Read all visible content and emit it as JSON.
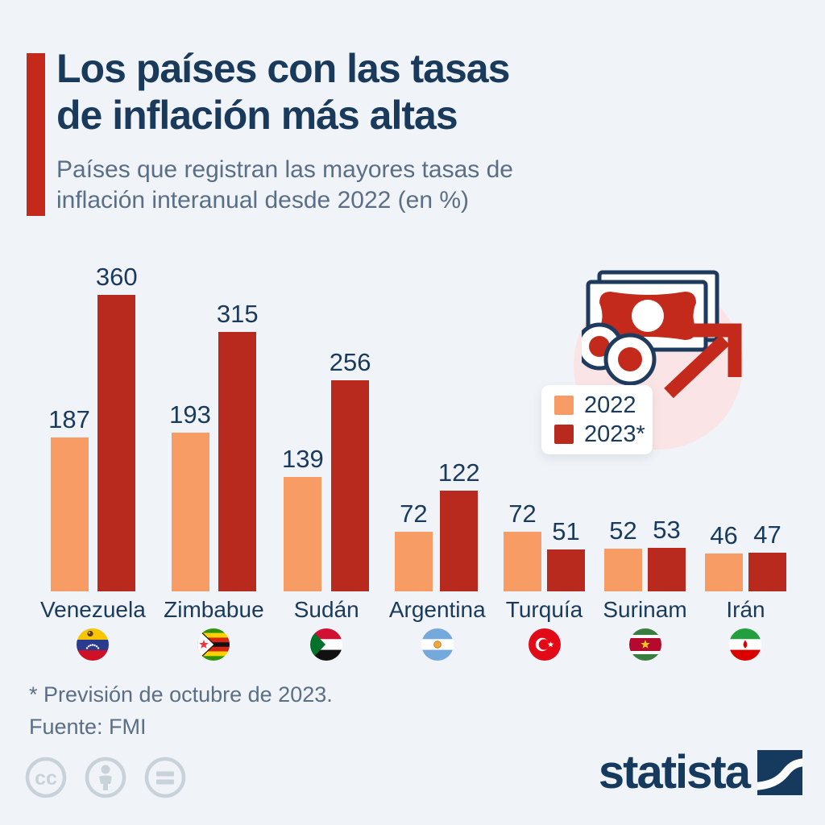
{
  "header": {
    "title_line1": "Los países con las tasas",
    "title_line2": "de inflación más altas",
    "subtitle_line1": "Países que registran las mayores tasas de",
    "subtitle_line2": "inflación interanual desde 2022 (en %)"
  },
  "chart_data": {
    "type": "bar",
    "title": "Los países con las tasas de inflación más altas",
    "subtitle": "Países que registran las mayores tasas de inflación interanual desde 2022 (en %)",
    "categories": [
      "Venezuela",
      "Zimbabue",
      "Sudán",
      "Argentina",
      "Turquía",
      "Surinam",
      "Irán"
    ],
    "series": [
      {
        "name": "2022",
        "color": "#F89C66",
        "values": [
          187,
          193,
          139,
          72,
          72,
          52,
          46
        ]
      },
      {
        "name": "2023*",
        "color": "#B92A1E",
        "values": [
          360,
          315,
          256,
          122,
          51,
          53,
          47
        ]
      }
    ],
    "flags": [
      "venezuela",
      "zimbabwe",
      "sudan",
      "argentina",
      "turkey",
      "suriname",
      "iran"
    ],
    "ylim": [
      0,
      380
    ],
    "grid": false,
    "value_labels": true,
    "legend_position": "middle-right"
  },
  "legend": {
    "items": [
      {
        "label": "2022",
        "color": "#F89C66"
      },
      {
        "label": "2023*",
        "color": "#B92A1E"
      }
    ]
  },
  "decor": {
    "money_icon": "banknote-coins-rising-arrow-icon"
  },
  "footer": {
    "footnote": "* Previsión de octubre de 2023.",
    "source": "Fuente: FMI"
  },
  "branding": {
    "logo_text": "statista",
    "license_icons": [
      "cc-icon",
      "attribution-icon",
      "nd-icon"
    ]
  },
  "colors": {
    "background": "#F0F4F8",
    "accent_bar": "#C32A1B",
    "title": "#1A3A5C",
    "subtitle": "#5A6E85",
    "series_2022": "#F89C66",
    "series_2023": "#B92A1E",
    "icon_circle_bg": "#FBE4E5",
    "icon_outline": "#1E3A5C",
    "license_gray": "#C9D1D9"
  }
}
